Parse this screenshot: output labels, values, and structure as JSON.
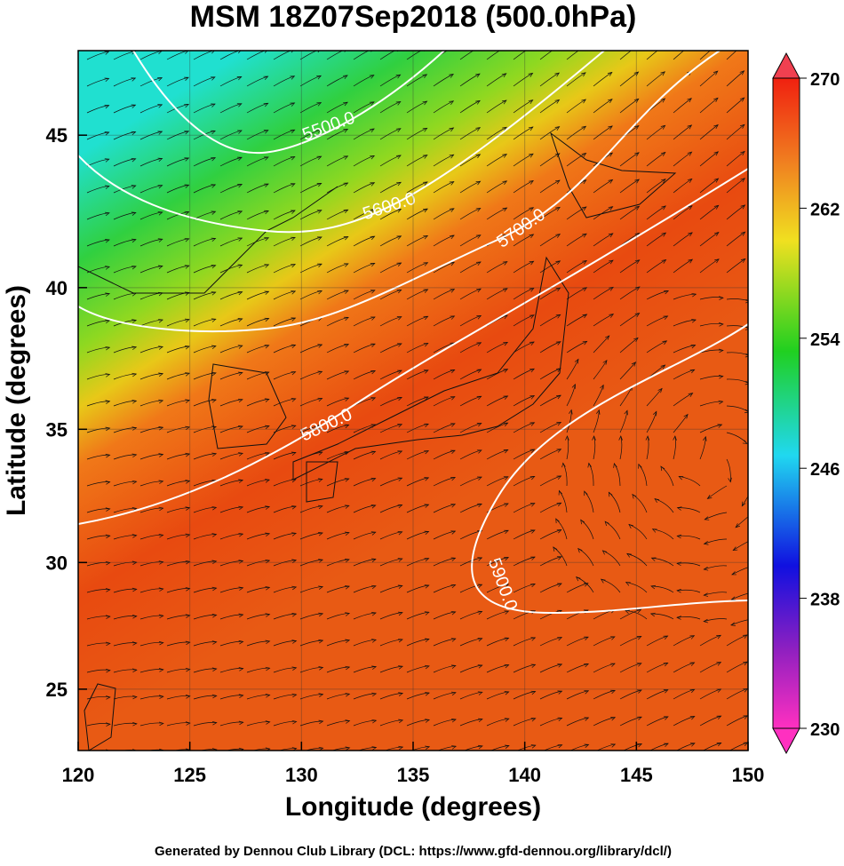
{
  "chart_data": {
    "type": "map",
    "title": "MSM 18Z07Sep2018 (500.0hPa)",
    "x_label": "Longitude (degrees)",
    "y_label": "Latitude  (degrees)",
    "projection": "mercator",
    "xlim": [
      120,
      150
    ],
    "ylim": [
      22.5,
      47.6
    ],
    "xticks": [
      120,
      125,
      130,
      135,
      140,
      145,
      150
    ],
    "yticks": [
      25,
      30,
      35,
      40,
      45
    ],
    "grid": true,
    "colorbar": {
      "lim": [
        230,
        270
      ],
      "ticks": [
        230,
        238,
        246,
        254,
        262,
        270
      ]
    },
    "contours": [
      {
        "value": 5500,
        "label": "5500.0"
      },
      {
        "value": 5600,
        "label": "5600.0"
      },
      {
        "value": 5700,
        "label": "5700.0"
      },
      {
        "value": 5800,
        "label": "5800.0"
      },
      {
        "value": 5900,
        "label": "5900.0"
      }
    ],
    "footer": "Generated by Dennou Club Library (DCL: https://www.gfd-dennou.org/library/dcl/)"
  }
}
